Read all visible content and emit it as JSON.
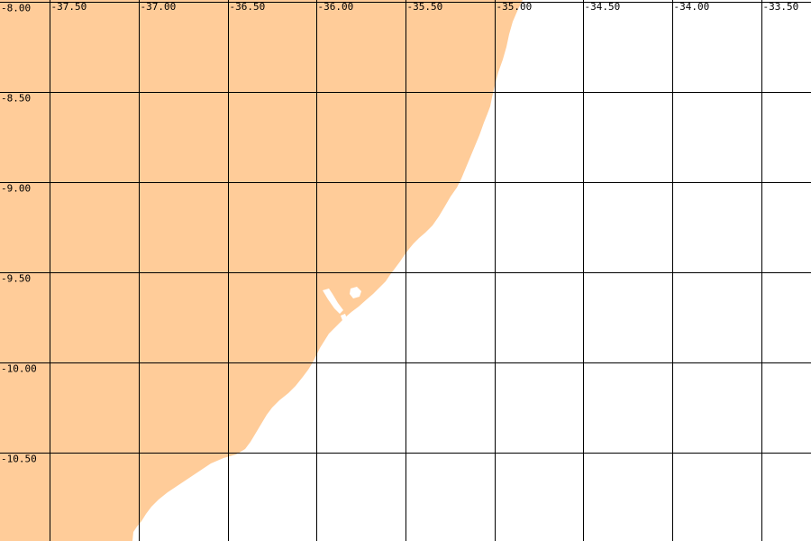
{
  "map": {
    "colors": {
      "land": "#ffcc99",
      "water": "#ffffff",
      "grid": "#000000",
      "label": "#000000"
    },
    "lon_range": [
      -37.78,
      -33.22
    ],
    "lat_range": [
      -10.99,
      -7.99
    ],
    "lon_labels": [
      {
        "value": -37.5,
        "text": "-37.50"
      },
      {
        "value": -37.0,
        "text": "-37.00"
      },
      {
        "value": -36.5,
        "text": "-36.50"
      },
      {
        "value": -36.0,
        "text": "-36.00"
      },
      {
        "value": -35.5,
        "text": "-35.50"
      },
      {
        "value": -35.0,
        "text": "-35.00"
      },
      {
        "value": -34.5,
        "text": "-34.50"
      },
      {
        "value": -34.0,
        "text": "-34.00"
      },
      {
        "value": -33.5,
        "text": "-33.50"
      }
    ],
    "lat_labels": [
      {
        "value": -8.0,
        "text": "-8.00"
      },
      {
        "value": -8.5,
        "text": "-8.50"
      },
      {
        "value": -9.0,
        "text": "-9.00"
      },
      {
        "value": -9.5,
        "text": "-9.50"
      },
      {
        "value": -10.0,
        "text": "-10.00"
      },
      {
        "value": -10.5,
        "text": "-10.50"
      }
    ]
  }
}
